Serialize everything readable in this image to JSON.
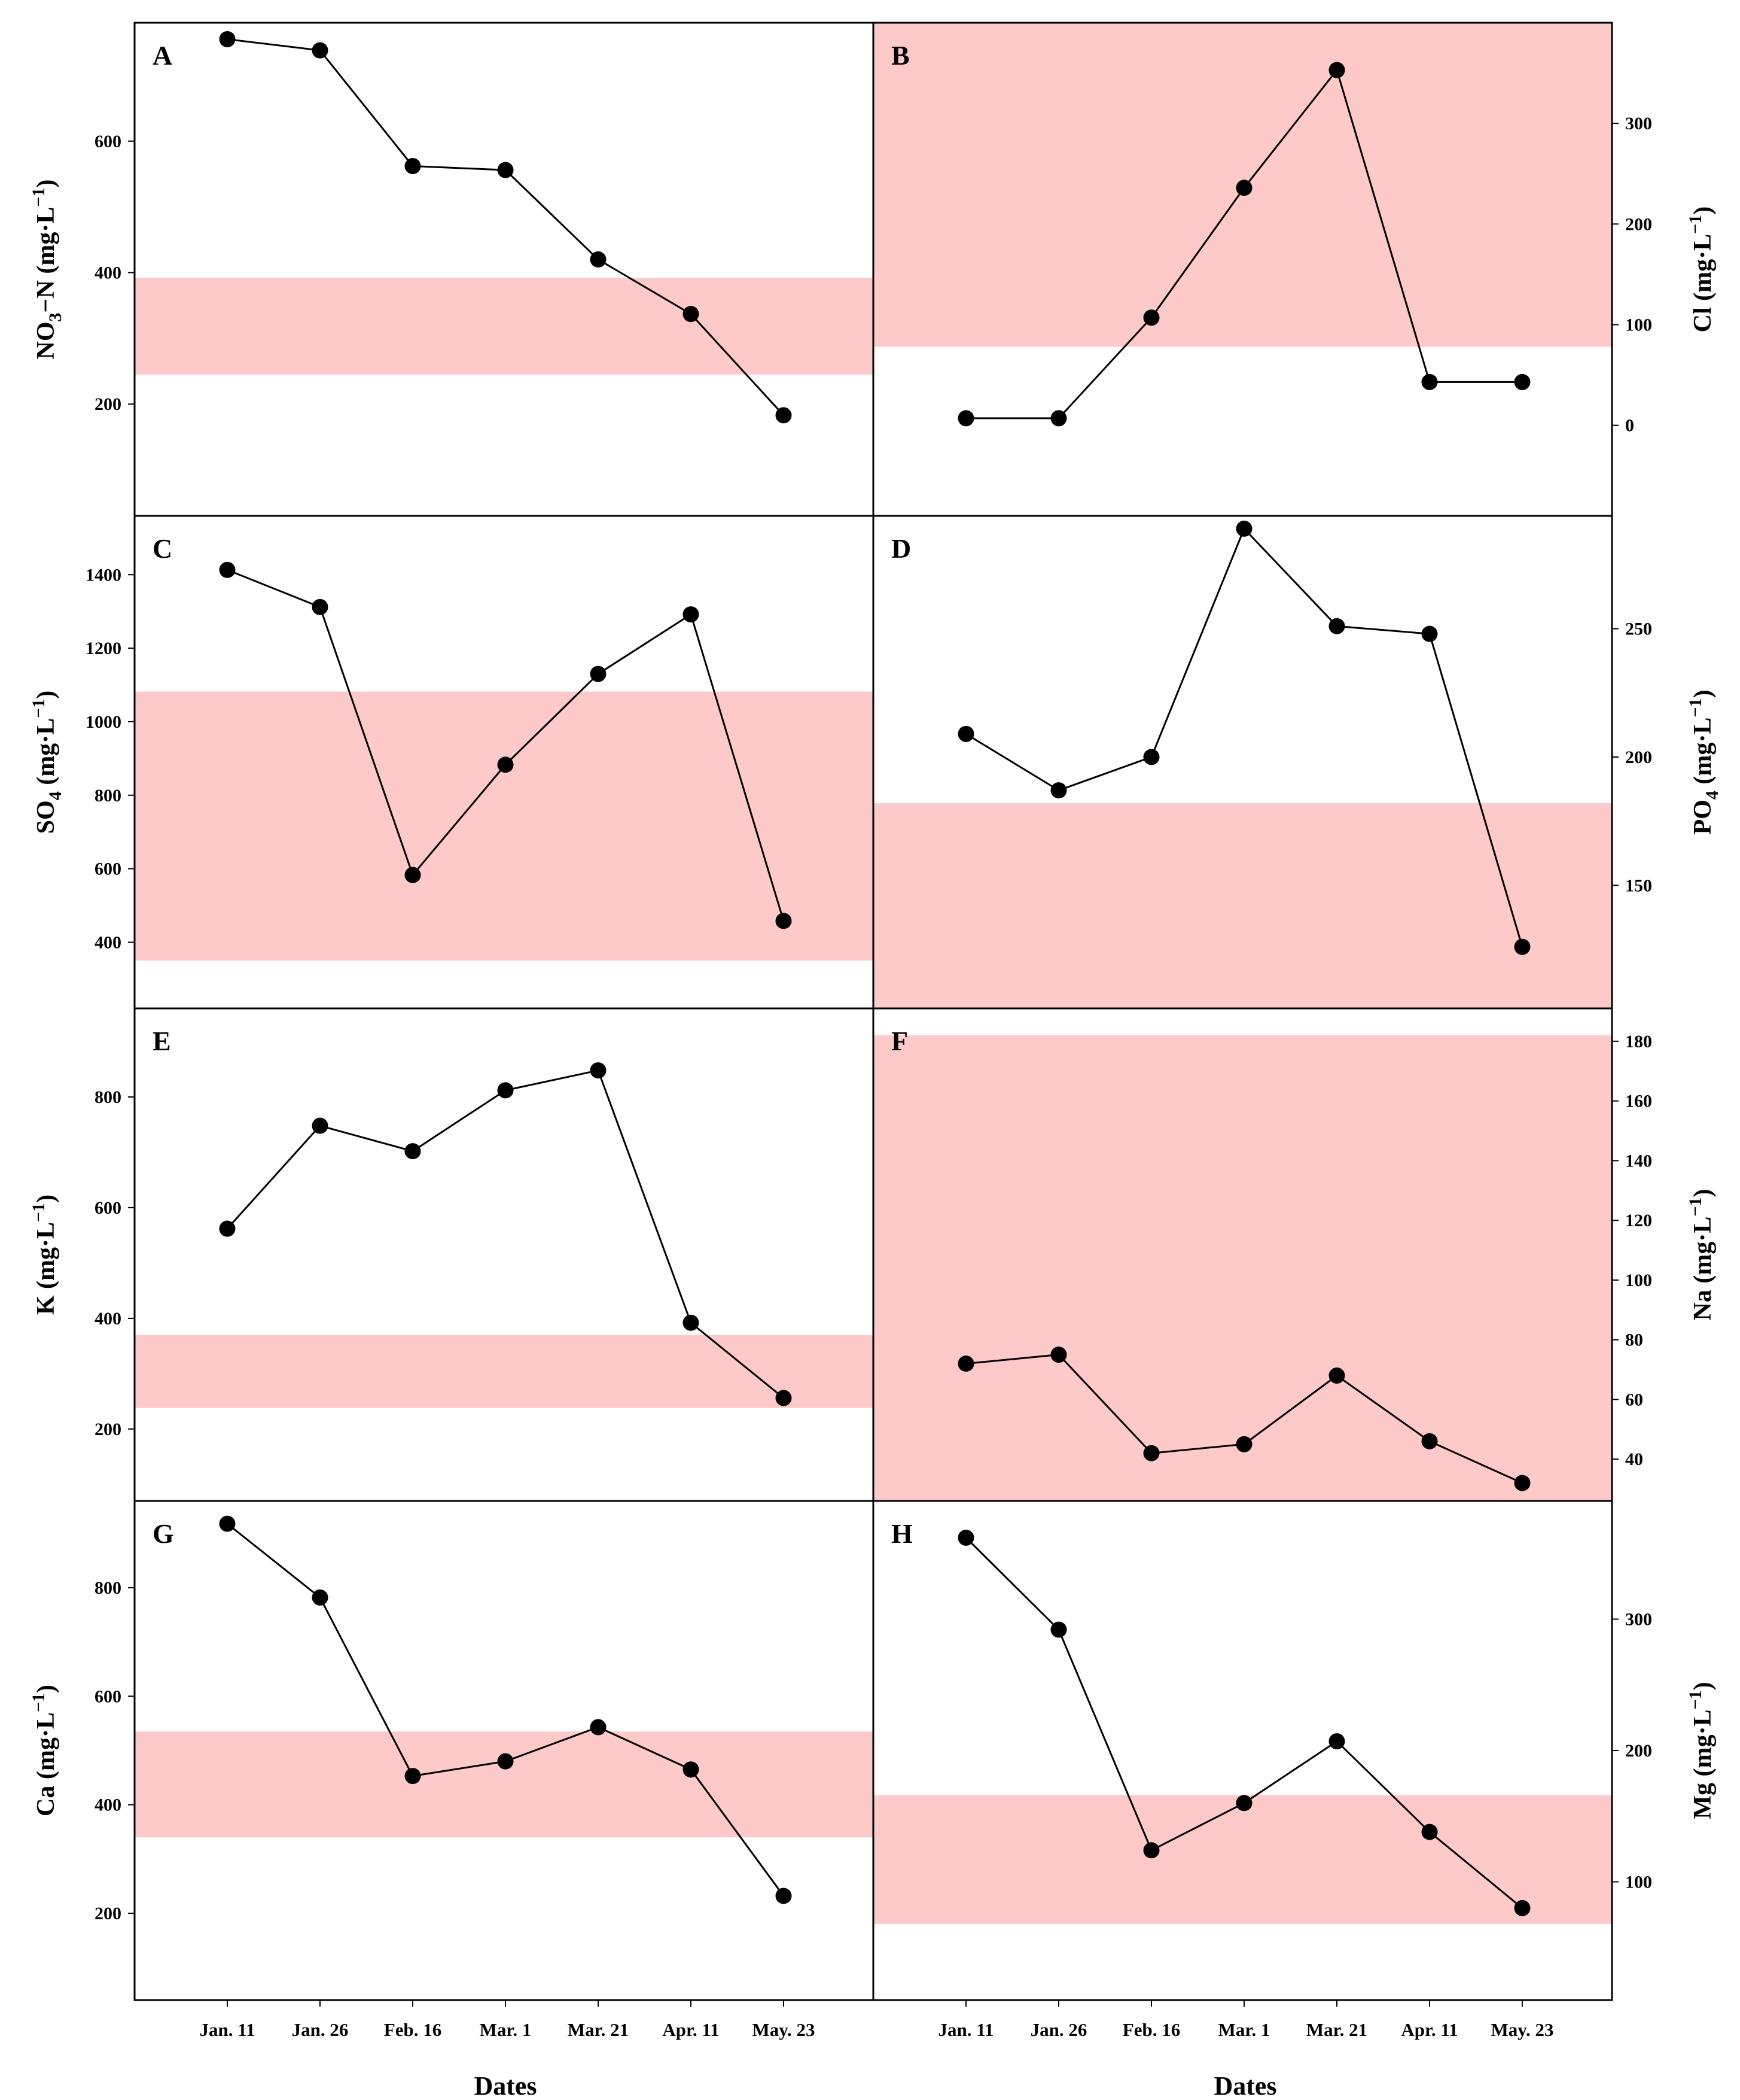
{
  "chart_data": {
    "type": "line",
    "x_label": "Dates",
    "categories": [
      "Jan. 11",
      "Jan. 26",
      "Feb. 16",
      "Mar. 1",
      "Mar. 21",
      "Apr. 11",
      "May. 23"
    ],
    "colors": {
      "band": "#fdc9c9",
      "line": "#000000",
      "marker": "#000000",
      "frame": "#000000"
    },
    "panels": [
      {
        "letter": "A",
        "ylabel": "NO3−N (mg·L−1)",
        "ylabel_parts": {
          "base": "NO",
          "sub": "3",
          "mid": "−N (mg·L",
          "sup": "−1",
          "end": ")"
        },
        "ylim": [
          30,
          780
        ],
        "yticks": [
          200,
          400,
          600
        ],
        "band": [
          245,
          392
        ],
        "values": [
          755,
          738,
          562,
          556,
          420,
          337,
          183
        ]
      },
      {
        "letter": "B",
        "ylabel": "Cl (mg·L−1)",
        "ylabel_parts": {
          "base": "Cl (mg·L",
          "sub": "",
          "mid": "",
          "sup": "−1",
          "end": ")"
        },
        "ylim": [
          -90,
          400
        ],
        "yticks": [
          0,
          100,
          200,
          300
        ],
        "band": [
          78,
          400
        ],
        "values": [
          7,
          7,
          107,
          236,
          353,
          43,
          43
        ]
      },
      {
        "letter": "C",
        "ylabel": "SO4 (mg·L−1)",
        "ylabel_parts": {
          "base": "SO",
          "sub": "4",
          "mid": " (mg·L",
          "sup": "−1",
          "end": ")"
        },
        "ylim": [
          220,
          1560
        ],
        "yticks": [
          400,
          600,
          800,
          1000,
          1200,
          1400
        ],
        "band": [
          350,
          1082
        ],
        "values": [
          1413,
          1312,
          583,
          883,
          1130,
          1292,
          458
        ]
      },
      {
        "letter": "D",
        "ylabel": "PO4 (mg·L−1)",
        "ylabel_parts": {
          "base": "PO",
          "sub": "4",
          "mid": " (mg·L",
          "sup": "−1",
          "end": ")"
        },
        "ylim": [
          102,
          294
        ],
        "yticks": [
          150,
          200,
          250
        ],
        "band": [
          102,
          182
        ],
        "values": [
          209,
          187,
          200,
          289,
          251,
          248,
          126
        ]
      },
      {
        "letter": "E",
        "ylabel": "K (mg·L−1)",
        "ylabel_parts": {
          "base": "K (mg·L",
          "sub": "",
          "mid": "",
          "sup": "−1",
          "end": ")"
        },
        "ylim": [
          70,
          960
        ],
        "yticks": [
          200,
          400,
          600,
          800
        ],
        "band": [
          238,
          370
        ],
        "values": [
          562,
          748,
          702,
          812,
          848,
          392,
          256
        ]
      },
      {
        "letter": "F",
        "ylabel": "Na (mg·L−1)",
        "ylabel_parts": {
          "base": "Na (mg·L",
          "sub": "",
          "mid": "",
          "sup": "−1",
          "end": ")"
        },
        "ylim": [
          26,
          191
        ],
        "yticks": [
          40,
          60,
          80,
          100,
          120,
          140,
          160,
          180
        ],
        "band": [
          26,
          182
        ],
        "values": [
          72,
          75,
          42,
          45,
          68,
          46,
          32
        ]
      },
      {
        "letter": "G",
        "ylabel": "Ca (mg·L−1)",
        "ylabel_parts": {
          "base": "Ca (mg·L",
          "sub": "",
          "mid": "",
          "sup": "−1",
          "end": ")"
        },
        "ylim": [
          40,
          960
        ],
        "yticks": [
          200,
          400,
          600,
          800
        ],
        "band": [
          340,
          535
        ],
        "values": [
          918,
          782,
          453,
          480,
          543,
          465,
          232
        ]
      },
      {
        "letter": "H",
        "ylabel": "Mg (mg·L−1)",
        "ylabel_parts": {
          "base": "Mg (mg·L",
          "sub": "",
          "mid": "",
          "sup": "−1",
          "end": ")"
        },
        "ylim": [
          10,
          390
        ],
        "yticks": [
          100,
          200,
          300
        ],
        "band": [
          68,
          166
        ],
        "values": [
          362,
          292,
          124,
          160,
          207,
          138,
          80
        ]
      }
    ]
  }
}
